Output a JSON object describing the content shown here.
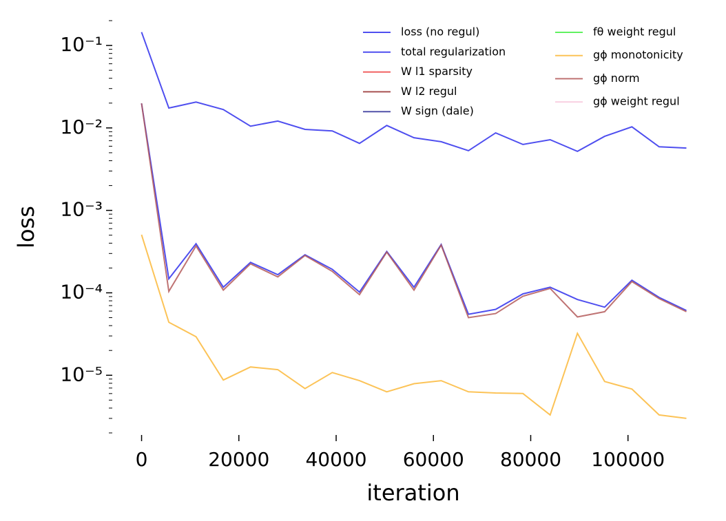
{
  "chart_data": {
    "type": "line",
    "xlabel": "iteration",
    "ylabel": "loss",
    "log_y": true,
    "x": [
      0,
      5600,
      11200,
      16800,
      22400,
      28000,
      33600,
      39200,
      44800,
      50400,
      56000,
      61600,
      67200,
      72800,
      78400,
      84000,
      89600,
      95200,
      100800,
      106400,
      112000
    ],
    "xlim": [
      -5600,
      117600
    ],
    "xticks": [
      0,
      20000,
      40000,
      60000,
      80000,
      100000
    ],
    "ylim": [
      2e-06,
      0.2
    ],
    "yticks": [
      {
        "value": 0.1,
        "label": "10⁻¹"
      },
      {
        "value": 0.01,
        "label": "10⁻²"
      },
      {
        "value": 0.001,
        "label": "10⁻³"
      },
      {
        "value": 0.0001,
        "label": "10⁻⁴"
      },
      {
        "value": 1e-05,
        "label": "10⁻⁵"
      }
    ],
    "y_minor_ticks": [
      2e-06,
      3e-06,
      4e-06,
      5e-06,
      6e-06,
      7e-06,
      8e-06,
      9e-06,
      2e-05,
      3e-05,
      4e-05,
      5e-05,
      6e-05,
      7e-05,
      8e-05,
      9e-05,
      0.0002,
      0.0003,
      0.0004,
      0.0005,
      0.0006,
      0.0007,
      0.0008,
      0.0009,
      0.002,
      0.003,
      0.004,
      0.005,
      0.006,
      0.007,
      0.008,
      0.009,
      0.02,
      0.03,
      0.04,
      0.05,
      0.06,
      0.07,
      0.08,
      0.09,
      0.2
    ],
    "legend": "upper right",
    "series": [
      {
        "name": "loss (no regul)",
        "color": "#2f2fec",
        "values": [
          0.145,
          0.0174,
          0.0206,
          0.0167,
          0.0105,
          0.0121,
          0.0096,
          0.0092,
          0.0065,
          0.0107,
          0.0076,
          0.0068,
          0.0053,
          0.0087,
          0.0063,
          0.0072,
          0.0052,
          0.0079,
          0.0103,
          0.0059,
          0.0057
        ]
      },
      {
        "name": "total regularization",
        "color": "#2f2fec",
        "values": [
          0.0199,
          0.000148,
          0.000394,
          0.000117,
          0.000234,
          0.000166,
          0.000289,
          0.000193,
          0.000102,
          0.000318,
          0.000117,
          0.000386,
          5.5e-05,
          6.3e-05,
          9.7e-05,
          0.000117,
          8.3e-05,
          6.7e-05,
          0.000142,
          8.8e-05,
          6.1e-05
        ]
      },
      {
        "name": "W l1 sparsity",
        "color": "#ee4444",
        "values": [
          null,
          null,
          null,
          null,
          null,
          null,
          null,
          null,
          null,
          null,
          null,
          null,
          null,
          null,
          null,
          null,
          null,
          null,
          null,
          null,
          null
        ]
      },
      {
        "name": "W l2 regul",
        "color": "#993333",
        "values": [
          null,
          null,
          null,
          null,
          null,
          null,
          null,
          null,
          null,
          null,
          null,
          null,
          null,
          null,
          null,
          null,
          null,
          null,
          null,
          null,
          null
        ]
      },
      {
        "name": "W sign (dale)",
        "color": "#333399",
        "values": [
          null,
          null,
          null,
          null,
          null,
          null,
          null,
          null,
          null,
          null,
          null,
          null,
          null,
          null,
          null,
          null,
          null,
          null,
          null,
          null,
          null
        ]
      },
      {
        "name": "fθ weight regul",
        "color": "#44ee44",
        "values": [
          null,
          null,
          null,
          null,
          null,
          null,
          null,
          null,
          null,
          null,
          null,
          null,
          null,
          null,
          null,
          null,
          null,
          null,
          null,
          null,
          null
        ]
      },
      {
        "name": "gϕ monotonicity",
        "color": "#fbb93a",
        "values": [
          0.000506,
          4.4e-05,
          2.94e-05,
          8.75e-06,
          1.26e-05,
          1.17e-05,
          6.9e-06,
          1.08e-05,
          8.6e-06,
          6.3e-06,
          7.9e-06,
          8.6e-06,
          6.3e-06,
          6.1e-06,
          6e-06,
          3.3e-06,
          3.23e-05,
          8.4e-06,
          6.8e-06,
          3.3e-06,
          3e-06
        ]
      },
      {
        "name": "gϕ norm",
        "color": "#b45a5a",
        "values": [
          0.0199,
          0.000104,
          0.000371,
          0.000108,
          0.000225,
          0.000156,
          0.000284,
          0.000182,
          9.5e-05,
          0.000312,
          0.000108,
          0.000379,
          5e-05,
          5.6e-05,
          9.1e-05,
          0.000113,
          5.1e-05,
          5.9e-05,
          0.000137,
          8.5e-05,
          5.9e-05
        ]
      },
      {
        "name": "gϕ weight regul",
        "color": "#f7c8dc",
        "values": [
          null,
          null,
          null,
          null,
          null,
          null,
          null,
          null,
          null,
          null,
          null,
          null,
          null,
          null,
          null,
          null,
          null,
          null,
          null,
          null,
          null
        ]
      }
    ]
  }
}
